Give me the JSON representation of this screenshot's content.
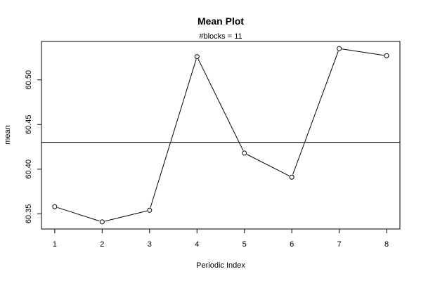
{
  "chart_data": {
    "type": "line",
    "title": "Mean Plot",
    "subtitle": "#blocks =  11",
    "xlabel": "Periodic Index",
    "ylabel": "mean",
    "x": [
      1,
      2,
      3,
      4,
      5,
      6,
      7,
      8
    ],
    "series": [
      {
        "values": [
          60.358,
          60.341,
          60.354,
          60.526,
          60.418,
          60.391,
          60.535,
          60.527
        ]
      }
    ],
    "hline": 60.43,
    "xticks": [
      1,
      2,
      3,
      4,
      5,
      6,
      7,
      8
    ],
    "xtick_labels": [
      "1",
      "2",
      "3",
      "4",
      "5",
      "6",
      "7",
      "8"
    ],
    "yticks": [
      60.35,
      60.4,
      60.45,
      60.5
    ],
    "ytick_labels": [
      "60.35",
      "60.40",
      "60.45",
      "60.50"
    ],
    "xlim": [
      0.72,
      8.28
    ],
    "ylim": [
      60.333,
      60.543
    ],
    "grid": false,
    "legend": "none",
    "colors": {
      "line": "#000000",
      "background": "#ffffff"
    }
  }
}
